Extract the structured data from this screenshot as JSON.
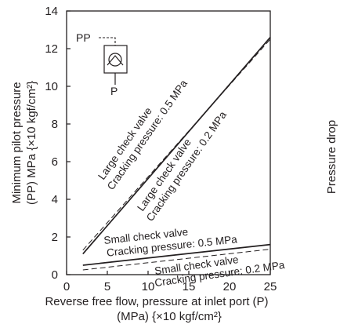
{
  "chart_data": {
    "type": "line",
    "xlabel_line1": "Reverse free flow, pressure at inlet port (P)",
    "xlabel_line2": "(MPa) {×10 kgf/cm²}",
    "ylabel_line1": "Minimum pilot pressure",
    "ylabel_line2": "(PP) MPa {×10 kgf/cm²}",
    "right_label": "Pressure drop",
    "xlim": [
      0,
      25
    ],
    "ylim": [
      0,
      14
    ],
    "x_ticks": [
      0,
      5,
      10,
      15,
      20,
      25
    ],
    "x_tick_labels": [
      "0",
      "5",
      "10",
      "15",
      "20",
      "25"
    ],
    "y_ticks": [
      0,
      2,
      4,
      6,
      8,
      10,
      12,
      14
    ],
    "y_tick_labels": [
      "0",
      "2",
      "4",
      "6",
      "8",
      "10",
      "12",
      "14"
    ],
    "series": [
      {
        "name": "Large check valve, Cracking pressure: 0.5 MPa",
        "style": "dashed",
        "x": [
          2,
          25
        ],
        "y": [
          1.3,
          12.5
        ]
      },
      {
        "name": "Large check valve, Cracking pressure: 0.2 MPa",
        "style": "solid",
        "x": [
          2,
          25
        ],
        "y": [
          1.1,
          12.6
        ]
      },
      {
        "name": "Small check valve, Cracking pressure: 0.5 MPa",
        "style": "solid",
        "x": [
          2,
          25
        ],
        "y": [
          0.5,
          1.6
        ]
      },
      {
        "name": "Small check valve, Cracking pressure: 0.2 MPa",
        "style": "dashed",
        "x": [
          2,
          25
        ],
        "y": [
          0.25,
          1.35
        ]
      }
    ],
    "annotations": [
      {
        "line1": "Large check valve",
        "line2": "Cracking pressure: 0.5 MPa"
      },
      {
        "line1": "Large check valve",
        "line2": "Cracking pressure: 0.2 MPa"
      },
      {
        "line1": "Small check valve",
        "line2": "Cracking pressure: 0.5 MPa"
      },
      {
        "line1": "Small check valve",
        "line2": "Cracking pressure: 0.2 MPa"
      }
    ],
    "symbol_labels": {
      "pilot_port": "PP",
      "inlet_port": "P"
    },
    "grid": false,
    "colors": {
      "ink": "#231f20",
      "background": "#ffffff"
    }
  }
}
